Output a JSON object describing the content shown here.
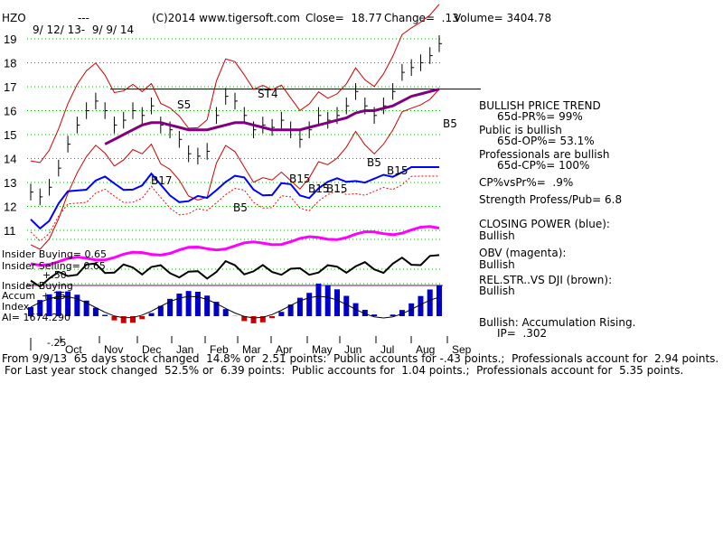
{
  "header": {
    "ticker": "HZO",
    "dashes": "---",
    "copyright": "(C)2014 www.tigersoft.com",
    "close": "Close=  18.77",
    "change": "Change=  .13",
    "volume": "Volume= 3404.78",
    "date_range": "9/ 12/ 13-  9/ 9/ 14"
  },
  "left_labels": {
    "insider_buying_top": "Insider Buying= 0.65",
    "insider_selling": "Insider Selling= 0.65",
    "plus50": "+.50",
    "insider_buying_2": "Insider Buying",
    "accum": "Accum  +.25",
    "index": "Index",
    "ai": "AI= 1674.290",
    "minus25": "-.25"
  },
  "signals": {
    "s5": "S5",
    "st4": "ST4",
    "b17": "B17",
    "b5_mar": "B5",
    "b15_a": "B15",
    "b15_b": "B15",
    "b15_c": "B15",
    "b5_jul": "B5",
    "b15_jul": "B15",
    "b5_right": "B5"
  },
  "right_panel": {
    "trend_title": "BULLISH PRICE TREND",
    "pr": "65d-PR%= 99%",
    "public": "Public is bullish",
    "op": "65d-OP%= 53.1%",
    "prof": "Professionals are bullish",
    "cp": "65d-CP%= 100%",
    "cpvspr": "CP%vsPr%=  .9%",
    "strength": "Strength Profess/Pub= 6.8",
    "closing_power": "CLOSING POWER (blue):",
    "cp_state": "Bullish",
    "obv": "OBV (magenta):",
    "obv_state": "Bullish",
    "relstr": "REL.STR..VS DJI (brown):",
    "relstr_state": "Bullish",
    "accum": "Bullish: Accumulation Rising.",
    "ip": "IP=  .302"
  },
  "footer": {
    "line1": "From 9/9/13  65 days stock changed  14.8% or  2.51 points:  Public accounts for -.43 points.;  Professionals account for  2.94 points.",
    "line2": "For Last year stock changed  52.5% or  6.39 points:  Public accounts for  1.04 points.;  Professionals account for  5.35 points."
  },
  "chart_data": {
    "type": "line",
    "title": "HZO",
    "xlabel": "",
    "ylabel": "",
    "months": [
      "Oct",
      "Nov",
      "Dec",
      "Jan",
      "Feb",
      "Mar",
      "Apr",
      "May",
      "Jun",
      "Jul",
      "Aug",
      "Sep"
    ],
    "y_ticks": [
      11,
      12,
      13,
      14,
      15,
      16,
      17,
      18,
      19
    ],
    "ylim": [
      10.5,
      19.5
    ],
    "resistance_level": 16.9,
    "price_close": [
      12.6,
      12.4,
      12.8,
      13.6,
      14.6,
      15.4,
      16.0,
      16.4,
      16.0,
      15.4,
      15.6,
      16.0,
      15.8,
      16.2,
      15.4,
      15.2,
      14.8,
      14.2,
      14.1,
      14.3,
      15.8,
      16.6,
      16.4,
      15.8,
      15.2,
      15.4,
      15.3,
      15.6,
      15.2,
      14.8,
      15.2,
      15.8,
      15.6,
      15.8,
      16.2,
      16.8,
      16.2,
      15.8,
      16.2,
      16.8,
      17.6,
      17.8,
      18.0,
      18.3,
      18.8
    ],
    "ma_65d": [
      null,
      null,
      null,
      null,
      null,
      null,
      null,
      null,
      14.6,
      14.8,
      15.0,
      15.2,
      15.4,
      15.5,
      15.5,
      15.4,
      15.3,
      15.2,
      15.2,
      15.2,
      15.3,
      15.4,
      15.5,
      15.5,
      15.4,
      15.3,
      15.2,
      15.2,
      15.2,
      15.2,
      15.3,
      15.4,
      15.5,
      15.6,
      15.7,
      15.9,
      16.0,
      16.0,
      16.1,
      16.2,
      16.4,
      16.6,
      16.7,
      16.8,
      16.9
    ],
    "series": [
      {
        "name": "CLOSING POWER (blue)",
        "color": "#0000ff"
      },
      {
        "name": "OBV (magenta)",
        "color": "#ff00ff"
      },
      {
        "name": "REL.STR..VS DJI (brown)",
        "color": "#000000"
      }
    ],
    "grid": true
  }
}
